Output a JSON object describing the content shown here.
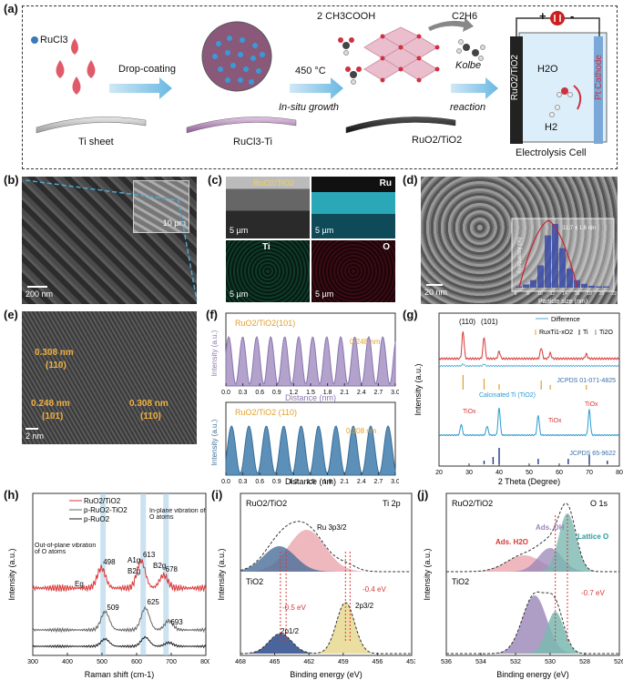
{
  "panels": {
    "a": {
      "label": "(a)",
      "rucl3": "RuCl3",
      "drop_coating": "Drop-coating",
      "ti_sheet": "Ti sheet",
      "temp": "450 °C",
      "in_situ": "In-situ growth",
      "rucl3_ti": "RuCl3-Ti",
      "reactant": "2 CH3COOH",
      "product": "C2H6",
      "kolbe1": "Kolbe",
      "kolbe2": "reaction",
      "ruo2_tio2_a": "RuO2/TiO2",
      "cell_anode": "RuO2/TiO2",
      "cell_cathode": "Pt Cathode",
      "h2o": "H2O",
      "h2": "H2",
      "cell": "Electrolysis Cell",
      "plus": "+",
      "minus": "-"
    },
    "b": {
      "label": "(b)",
      "scale_main": "200 nm",
      "scale_inset": "10 µm"
    },
    "c": {
      "label": "(c)",
      "tag_main": "RuO2/TiO2",
      "ru": "Ru",
      "ti": "Ti",
      "o": "O",
      "scale1": "5 µm",
      "scale2": "5 µm",
      "scale3": "5 µm",
      "scale4": "5 µm"
    },
    "d": {
      "label": "(d)",
      "scale": "20 nm",
      "inset_xlabel": "Particle size (nm)",
      "inset_ylabel": "Frequency (%)",
      "inset_note": "11.7 ± 1.6 nm",
      "inset_ticks": [
        "6",
        "8",
        "10",
        "12",
        "14",
        "16",
        "18",
        "20",
        "22"
      ]
    },
    "e": {
      "label": "(e)",
      "d1": "0.308 nm",
      "h1": "(110)",
      "d2": "0.248 nm",
      "h2": "(101)",
      "d3": "0.308 nm",
      "h3": "(110)",
      "scale": "2 nm"
    },
    "f": {
      "label": "(f)",
      "title_top": "RuO2/TiO2(101)",
      "spacing_top": "0.248 nm",
      "title_bot": "RuO2/TiO2 (110)",
      "spacing_bot": "0.308 nm",
      "ylabel": "Intensity (a.u.)",
      "xlabel": "Distance (nm)",
      "ticks": [
        "0.0",
        "0.3",
        "0.6",
        "0.9",
        "1.2",
        "1.5",
        "1.8",
        "2.1",
        "2.4",
        "2.7",
        "3.0"
      ]
    },
    "g": {
      "label": "(g)",
      "ylabel": "Intensity (a.u.)",
      "xlabel": "2 Theta (Degree)",
      "peak1": "(110)",
      "peak2": "(101)",
      "leg_diff": "Difference",
      "leg_rutio": "RuxTi1-xO2",
      "leg_ti": "Ti",
      "leg_ti2o": "Ti2O",
      "jcpds1": "JCPDS 01-071-4825",
      "calc": "Calcinated Ti (TiO2)",
      "tio1": "TiOx",
      "tio2": "TiOx",
      "tio3": "TiOx",
      "jcpds2": "JCPDS 65-9622",
      "xticks": [
        "20",
        "30",
        "40",
        "50",
        "60",
        "70",
        "80"
      ]
    },
    "h": {
      "label": "(h)",
      "leg1": "RuO2/TiO2",
      "leg2": "p-RuO2-TiO2",
      "leg3": "p-RuO2",
      "oop": "Out-of-plane vibration of O atoms",
      "ip": "In-plane vibration of O atoms",
      "eg": "Eg",
      "a1g": "A1g",
      "b2g_a": "B2g",
      "b2g_b": "B2g",
      "p498": "498",
      "p613": "613",
      "p678": "678",
      "p509": "509",
      "p625": "625",
      "p693": "693",
      "ylabel": "Intensity (a.u.)",
      "xlabel": "Raman shift (cm-1)",
      "xticks": [
        "300",
        "400",
        "500",
        "600",
        "700",
        "800"
      ]
    },
    "i": {
      "label": "(i)",
      "sample_top": "RuO2/TiO2",
      "core": "Ti 2p",
      "ru3p": "Ru 3p3/2",
      "sample_bot": "TiO2",
      "shift1": "-0.5 eV",
      "shift2": "-0.4 eV",
      "p12": "2p1/2",
      "p32": "2p3/2",
      "ylabel": "Intensity (a.u.)",
      "xlabel": "Binding energy (eV)",
      "xticks": [
        "468",
        "465",
        "462",
        "459",
        "456",
        "453"
      ]
    },
    "j": {
      "label": "(j)",
      "sample_top": "RuO2/TiO2",
      "core": "O 1s",
      "ads_h2o": "Ads. H2O",
      "ads_oh": "Ads. OH",
      "lattice": "Lattice O",
      "sample_bot": "TiO2",
      "shift": "-0.7 eV",
      "ylabel": "Intensity (a.u.)",
      "xlabel": "Binding energy (eV)",
      "xticks": [
        "536",
        "534",
        "532",
        "530",
        "528",
        "526"
      ]
    }
  },
  "colors": {
    "accent_blue": "#4ea8d8",
    "red_line": "#d93838",
    "purple": "#9a86b8",
    "steel_blue": "#4a7fa8",
    "orange_label": "#e0a030"
  }
}
